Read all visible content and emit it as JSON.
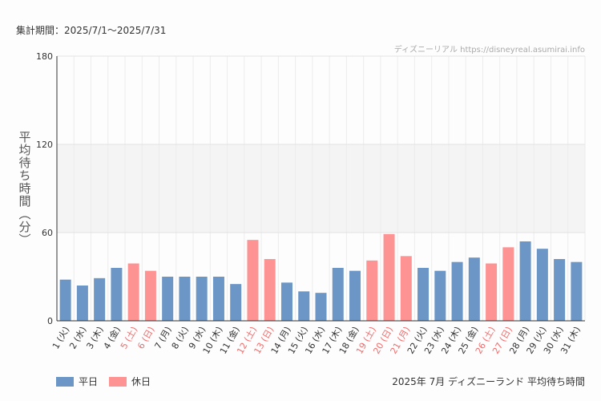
{
  "period_label": "集計期間：2025/7/1〜2025/7/31",
  "credit": "ディズニーリアル https://disneyreal.asumirai.info",
  "caption": "2025年 7月 ディズニーランド 平均待ち時間",
  "colors": {
    "weekday": "#6c96c6",
    "holiday": "#fd9393",
    "holiday_label": "#f06c6c",
    "label": "#333333"
  },
  "chart_data": {
    "type": "bar",
    "title": "2025年 7月 ディズニーランド 平均待ち時間",
    "ylabel": "平均待ち時間（分）",
    "xlabel": "",
    "ylim": [
      0,
      180
    ],
    "yticks": [
      "0",
      "60",
      "120",
      "180"
    ],
    "yticks_values": [
      0,
      60,
      120,
      180
    ],
    "shaded_band": [
      60,
      120
    ],
    "legend": [
      {
        "key": "weekday",
        "label": "平日"
      },
      {
        "key": "holiday",
        "label": "休日"
      }
    ],
    "categories": [
      "1 (火)",
      "2 (水)",
      "3 (木)",
      "4 (金)",
      "5 (土)",
      "6 (日)",
      "7 (月)",
      "8 (火)",
      "9 (水)",
      "10 (木)",
      "11 (金)",
      "12 (土)",
      "13 (日)",
      "14 (月)",
      "15 (火)",
      "16 (水)",
      "17 (木)",
      "18 (金)",
      "19 (土)",
      "20 (日)",
      "21 (月)",
      "22 (火)",
      "23 (水)",
      "24 (木)",
      "25 (金)",
      "26 (土)",
      "27 (日)",
      "28 (月)",
      "29 (火)",
      "30 (水)",
      "31 (木)"
    ],
    "values": [
      28,
      24,
      29,
      36,
      39,
      34,
      30,
      30,
      30,
      30,
      25,
      55,
      42,
      26,
      20,
      19,
      36,
      34,
      41,
      59,
      44,
      36,
      34,
      40,
      43,
      39,
      50,
      54,
      49,
      42,
      40
    ],
    "day_type": [
      "weekday",
      "weekday",
      "weekday",
      "weekday",
      "holiday",
      "holiday",
      "weekday",
      "weekday",
      "weekday",
      "weekday",
      "weekday",
      "holiday",
      "holiday",
      "weekday",
      "weekday",
      "weekday",
      "weekday",
      "weekday",
      "holiday",
      "holiday",
      "holiday",
      "weekday",
      "weekday",
      "weekday",
      "weekday",
      "holiday",
      "holiday",
      "weekday",
      "weekday",
      "weekday",
      "weekday"
    ]
  }
}
